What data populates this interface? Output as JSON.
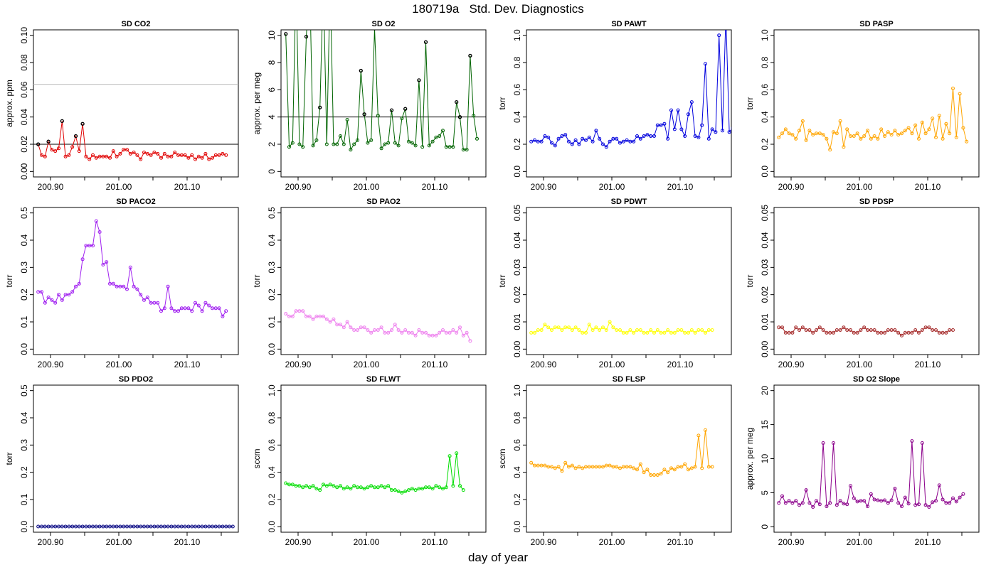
{
  "figure": {
    "title": "180719a   Std. Dev. Diagnostics",
    "xlabel": "day of year"
  },
  "chart_data": [
    {
      "type": "line",
      "title": "SD CO2",
      "ylabel": "approx. ppm",
      "color": "#e00000",
      "xlim": [
        200.875,
        201.175
      ],
      "ylim": [
        0,
        0.1
      ],
      "xticks": [
        200.9,
        201.0,
        201.1
      ],
      "xtick_labels": [
        "200.90",
        "201.00",
        "201.10"
      ],
      "yticks": [
        0,
        0.02,
        0.04,
        0.06,
        0.08,
        0.1
      ],
      "ytick_labels": [
        "0.00",
        "0.02",
        "0.04",
        "0.06",
        "0.08",
        "0.10"
      ],
      "hlines": [
        {
          "y": 0.02,
          "color": "#000000"
        },
        {
          "y": 0.064,
          "color": "#bbbbbb"
        }
      ],
      "x_start": 200.882,
      "x_step": 0.005,
      "values": [
        0.02,
        0.012,
        0.011,
        0.022,
        0.016,
        0.015,
        0.017,
        0.037,
        0.011,
        0.012,
        0.018,
        0.026,
        0.015,
        0.035,
        0.011,
        0.009,
        0.012,
        0.01,
        0.011,
        0.011,
        0.011,
        0.01,
        0.015,
        0.011,
        0.013,
        0.016,
        0.016,
        0.013,
        0.014,
        0.012,
        0.009,
        0.014,
        0.013,
        0.012,
        0.014,
        0.013,
        0.01,
        0.013,
        0.011,
        0.011,
        0.014,
        0.012,
        0.012,
        0.012,
        0.01,
        0.012,
        0.009,
        0.011,
        0.01,
        0.013,
        0.009,
        0.01,
        0.012,
        0.012,
        0.013,
        0.012
      ],
      "highlight": [
        0,
        3,
        7,
        11,
        13
      ]
    },
    {
      "type": "line",
      "title": "SD O2",
      "ylabel": "approx. per meg",
      "color": "#006400",
      "xlim": [
        200.875,
        201.175
      ],
      "ylim": [
        0,
        10
      ],
      "xticks": [
        200.9,
        201.0,
        201.1
      ],
      "xtick_labels": [
        "200.90",
        "201.00",
        "201.10"
      ],
      "yticks": [
        0,
        2,
        4,
        6,
        8,
        10
      ],
      "ytick_labels": [
        "0",
        "2",
        "4",
        "6",
        "8",
        "10"
      ],
      "hlines": [
        {
          "y": 4,
          "color": "#000000"
        }
      ],
      "x_start": 200.882,
      "x_step": 0.005,
      "values": [
        10.1,
        1.8,
        2.1,
        14,
        2.0,
        1.8,
        9.9,
        14,
        1.9,
        2.3,
        4.7,
        14,
        2.0,
        14,
        2.0,
        2.0,
        2.6,
        2.0,
        3.8,
        1.6,
        2.0,
        2.3,
        7.4,
        4.2,
        2.1,
        2.3,
        10.5,
        4.1,
        1.7,
        2.0,
        2.1,
        4.5,
        2.1,
        1.9,
        3.9,
        4.6,
        2.2,
        2.1,
        1.9,
        6.7,
        1.8,
        9.5,
        1.9,
        2.2,
        2.5,
        2.6,
        3.0,
        1.8,
        1.8,
        1.8,
        5.1,
        4.0,
        1.6,
        1.6,
        8.5,
        4.1,
        2.4
      ],
      "highlight": [
        0,
        6,
        10,
        22,
        23,
        26,
        31,
        35,
        39,
        41,
        50,
        51,
        54
      ]
    },
    {
      "type": "line",
      "title": "SD PAWT",
      "ylabel": "torr",
      "color": "#0000dd",
      "xlim": [
        200.875,
        201.175
      ],
      "ylim": [
        0,
        1.0
      ],
      "xticks": [
        200.9,
        201.0,
        201.1
      ],
      "xtick_labels": [
        "200.90",
        "201.00",
        "201.10"
      ],
      "yticks": [
        0,
        0.2,
        0.4,
        0.6,
        0.8,
        1.0
      ],
      "ytick_labels": [
        "0.0",
        "0.2",
        "0.4",
        "0.6",
        "0.8",
        "1.0"
      ],
      "hlines": [],
      "x_start": 200.882,
      "x_step": 0.005,
      "values": [
        0.22,
        0.23,
        0.22,
        0.22,
        0.26,
        0.25,
        0.21,
        0.19,
        0.24,
        0.26,
        0.27,
        0.22,
        0.2,
        0.23,
        0.2,
        0.24,
        0.23,
        0.25,
        0.22,
        0.3,
        0.24,
        0.2,
        0.18,
        0.22,
        0.24,
        0.24,
        0.21,
        0.22,
        0.23,
        0.22,
        0.22,
        0.26,
        0.24,
        0.26,
        0.27,
        0.26,
        0.26,
        0.34,
        0.34,
        0.35,
        0.24,
        0.45,
        0.31,
        0.45,
        0.31,
        0.26,
        0.42,
        0.51,
        0.26,
        0.25,
        0.34,
        0.79,
        0.24,
        0.31,
        0.29,
        1.0,
        0.3,
        1.15,
        0.29,
        0.32
      ],
      "highlight": []
    },
    {
      "type": "line",
      "title": "SD PASP",
      "ylabel": "torr",
      "color": "#ffa500",
      "xlim": [
        200.875,
        201.175
      ],
      "ylim": [
        0,
        1.0
      ],
      "xticks": [
        200.9,
        201.0,
        201.1
      ],
      "xtick_labels": [
        "200.90",
        "201.00",
        "201.10"
      ],
      "yticks": [
        0,
        0.2,
        0.4,
        0.6,
        0.8,
        1.0
      ],
      "ytick_labels": [
        "0.0",
        "0.2",
        "0.4",
        "0.6",
        "0.8",
        "1.0"
      ],
      "hlines": [],
      "x_start": 200.882,
      "x_step": 0.005,
      "values": [
        0.25,
        0.28,
        0.31,
        0.28,
        0.27,
        0.24,
        0.3,
        0.37,
        0.23,
        0.3,
        0.27,
        0.28,
        0.28,
        0.27,
        0.24,
        0.16,
        0.29,
        0.28,
        0.37,
        0.18,
        0.31,
        0.26,
        0.26,
        0.28,
        0.24,
        0.26,
        0.3,
        0.24,
        0.26,
        0.24,
        0.31,
        0.26,
        0.29,
        0.27,
        0.3,
        0.27,
        0.28,
        0.3,
        0.32,
        0.28,
        0.34,
        0.24,
        0.36,
        0.28,
        0.31,
        0.39,
        0.25,
        0.41,
        0.24,
        0.35,
        0.28,
        0.61,
        0.25,
        0.57,
        0.32,
        0.22
      ],
      "highlight": []
    },
    {
      "type": "line",
      "title": "SD PACO2",
      "ylabel": "torr",
      "color": "#a020f0",
      "xlim": [
        200.875,
        201.175
      ],
      "ylim": [
        0,
        0.5
      ],
      "xticks": [
        200.9,
        201.0,
        201.1
      ],
      "xtick_labels": [
        "200.90",
        "201.00",
        "201.10"
      ],
      "yticks": [
        0,
        0.1,
        0.2,
        0.3,
        0.4,
        0.5
      ],
      "ytick_labels": [
        "0.0",
        "0.1",
        "0.2",
        "0.3",
        "0.4",
        "0.5"
      ],
      "hlines": [],
      "x_start": 200.882,
      "x_step": 0.005,
      "values": [
        0.21,
        0.21,
        0.17,
        0.19,
        0.18,
        0.17,
        0.2,
        0.18,
        0.2,
        0.2,
        0.21,
        0.23,
        0.24,
        0.33,
        0.38,
        0.38,
        0.38,
        0.47,
        0.43,
        0.31,
        0.32,
        0.24,
        0.24,
        0.23,
        0.23,
        0.23,
        0.22,
        0.3,
        0.23,
        0.22,
        0.2,
        0.18,
        0.19,
        0.17,
        0.17,
        0.17,
        0.14,
        0.15,
        0.23,
        0.15,
        0.14,
        0.14,
        0.15,
        0.15,
        0.15,
        0.14,
        0.17,
        0.16,
        0.14,
        0.17,
        0.16,
        0.15,
        0.15,
        0.15,
        0.12,
        0.14
      ],
      "highlight": []
    },
    {
      "type": "line",
      "title": "SD PAO2",
      "ylabel": "torr",
      "color": "#ee82ee",
      "xlim": [
        200.875,
        201.175
      ],
      "ylim": [
        0,
        0.5
      ],
      "xticks": [
        200.9,
        201.0,
        201.1
      ],
      "xtick_labels": [
        "200.90",
        "201.00",
        "201.10"
      ],
      "yticks": [
        0,
        0.1,
        0.2,
        0.3,
        0.4,
        0.5
      ],
      "ytick_labels": [
        "0.0",
        "0.1",
        "0.2",
        "0.3",
        "0.4",
        "0.5"
      ],
      "hlines": [],
      "x_start": 200.882,
      "x_step": 0.005,
      "values": [
        0.13,
        0.12,
        0.12,
        0.14,
        0.14,
        0.14,
        0.12,
        0.12,
        0.11,
        0.12,
        0.12,
        0.12,
        0.11,
        0.1,
        0.11,
        0.09,
        0.09,
        0.08,
        0.1,
        0.08,
        0.07,
        0.07,
        0.08,
        0.08,
        0.07,
        0.06,
        0.07,
        0.07,
        0.08,
        0.06,
        0.06,
        0.07,
        0.09,
        0.07,
        0.06,
        0.07,
        0.06,
        0.06,
        0.05,
        0.07,
        0.06,
        0.06,
        0.05,
        0.05,
        0.05,
        0.06,
        0.07,
        0.06,
        0.06,
        0.07,
        0.06,
        0.08,
        0.05,
        0.06,
        0.03
      ],
      "highlight": []
    },
    {
      "type": "line",
      "title": "SD PDWT",
      "ylabel": "torr",
      "color": "#ffff00",
      "xlim": [
        200.875,
        201.175
      ],
      "ylim": [
        0,
        0.05
      ],
      "xticks": [
        200.9,
        201.0,
        201.1
      ],
      "xtick_labels": [
        "200.90",
        "201.00",
        "201.10"
      ],
      "yticks": [
        0,
        0.01,
        0.02,
        0.03,
        0.04,
        0.05
      ],
      "ytick_labels": [
        "0.00",
        "0.01",
        "0.02",
        "0.03",
        "0.04",
        "0.05"
      ],
      "hlines": [],
      "x_start": 200.882,
      "x_step": 0.005,
      "values": [
        0.006,
        0.006,
        0.007,
        0.007,
        0.009,
        0.008,
        0.007,
        0.008,
        0.008,
        0.007,
        0.008,
        0.008,
        0.007,
        0.008,
        0.007,
        0.006,
        0.006,
        0.009,
        0.007,
        0.008,
        0.007,
        0.008,
        0.007,
        0.01,
        0.008,
        0.007,
        0.007,
        0.006,
        0.006,
        0.007,
        0.006,
        0.007,
        0.007,
        0.006,
        0.006,
        0.007,
        0.006,
        0.007,
        0.006,
        0.006,
        0.007,
        0.006,
        0.006,
        0.007,
        0.007,
        0.006,
        0.006,
        0.007,
        0.006,
        0.007,
        0.007,
        0.006,
        0.007,
        0.007
      ],
      "highlight": []
    },
    {
      "type": "line",
      "title": "SD PDSP",
      "ylabel": "torr",
      "color": "#a52a2a",
      "xlim": [
        200.875,
        201.175
      ],
      "ylim": [
        0,
        0.05
      ],
      "xticks": [
        200.9,
        201.0,
        201.1
      ],
      "xtick_labels": [
        "200.90",
        "201.00",
        "201.10"
      ],
      "yticks": [
        0,
        0.01,
        0.02,
        0.03,
        0.04,
        0.05
      ],
      "ytick_labels": [
        "0.00",
        "0.01",
        "0.02",
        "0.03",
        "0.04",
        "0.05"
      ],
      "hlines": [],
      "x_start": 200.882,
      "x_step": 0.005,
      "values": [
        0.008,
        0.008,
        0.006,
        0.006,
        0.006,
        0.008,
        0.007,
        0.008,
        0.007,
        0.007,
        0.006,
        0.007,
        0.008,
        0.007,
        0.006,
        0.006,
        0.006,
        0.007,
        0.007,
        0.008,
        0.007,
        0.007,
        0.006,
        0.006,
        0.007,
        0.008,
        0.007,
        0.007,
        0.007,
        0.006,
        0.006,
        0.006,
        0.007,
        0.007,
        0.007,
        0.006,
        0.005,
        0.006,
        0.006,
        0.006,
        0.007,
        0.006,
        0.007,
        0.008,
        0.008,
        0.007,
        0.007,
        0.006,
        0.006,
        0.006,
        0.007,
        0.007
      ],
      "highlight": []
    },
    {
      "type": "line",
      "title": "SD PDO2",
      "ylabel": "torr",
      "color": "#000080",
      "xlim": [
        200.875,
        201.175
      ],
      "ylim": [
        0,
        0.5
      ],
      "xticks": [
        200.9,
        201.0,
        201.1
      ],
      "xtick_labels": [
        "200.90",
        "201.00",
        "201.10"
      ],
      "yticks": [
        0,
        0.1,
        0.2,
        0.3,
        0.4,
        0.5
      ],
      "ytick_labels": [
        "0.0",
        "0.1",
        "0.2",
        "0.3",
        "0.4",
        "0.5"
      ],
      "hlines": [],
      "x_start": 200.882,
      "x_step": 0.005,
      "values": [
        0.001,
        0.001,
        0.001,
        0.001,
        0.001,
        0.001,
        0.001,
        0.001,
        0.001,
        0.001,
        0.001,
        0.001,
        0.001,
        0.001,
        0.001,
        0.001,
        0.001,
        0.001,
        0.001,
        0.001,
        0.001,
        0.001,
        0.001,
        0.001,
        0.001,
        0.001,
        0.001,
        0.001,
        0.001,
        0.001,
        0.001,
        0.001,
        0.001,
        0.001,
        0.001,
        0.001,
        0.001,
        0.001,
        0.001,
        0.001,
        0.001,
        0.001,
        0.001,
        0.001,
        0.001,
        0.001,
        0.001,
        0.001,
        0.001,
        0.001,
        0.001,
        0.001,
        0.001,
        0.001,
        0.001,
        0.001,
        0.001,
        0.001
      ],
      "highlight": []
    },
    {
      "type": "line",
      "title": "SD FLWT",
      "ylabel": "sccm",
      "color": "#00dd00",
      "xlim": [
        200.875,
        201.175
      ],
      "ylim": [
        0,
        1.0
      ],
      "xticks": [
        200.9,
        201.0,
        201.1
      ],
      "xtick_labels": [
        "200.90",
        "201.00",
        "201.10"
      ],
      "yticks": [
        0,
        0.2,
        0.4,
        0.6,
        0.8,
        1.0
      ],
      "ytick_labels": [
        "0.0",
        "0.2",
        "0.4",
        "0.6",
        "0.8",
        "1.0"
      ],
      "hlines": [],
      "x_start": 200.882,
      "x_step": 0.005,
      "values": [
        0.32,
        0.31,
        0.31,
        0.3,
        0.3,
        0.29,
        0.3,
        0.29,
        0.3,
        0.28,
        0.27,
        0.31,
        0.3,
        0.31,
        0.3,
        0.29,
        0.3,
        0.28,
        0.29,
        0.28,
        0.3,
        0.29,
        0.29,
        0.28,
        0.29,
        0.3,
        0.29,
        0.29,
        0.3,
        0.29,
        0.3,
        0.27,
        0.27,
        0.26,
        0.25,
        0.26,
        0.27,
        0.28,
        0.27,
        0.28,
        0.28,
        0.29,
        0.29,
        0.28,
        0.3,
        0.29,
        0.28,
        0.29,
        0.52,
        0.3,
        0.54,
        0.3,
        0.27
      ],
      "highlight": []
    },
    {
      "type": "line",
      "title": "SD FLSP",
      "ylabel": "sccm",
      "color": "#ffa500",
      "xlim": [
        200.875,
        201.175
      ],
      "ylim": [
        0,
        1.0
      ],
      "xticks": [
        200.9,
        201.0,
        201.1
      ],
      "xtick_labels": [
        "200.90",
        "201.00",
        "201.10"
      ],
      "yticks": [
        0,
        0.2,
        0.4,
        0.6,
        0.8,
        1.0
      ],
      "ytick_labels": [
        "0.0",
        "0.2",
        "0.4",
        "0.6",
        "0.8",
        "1.0"
      ],
      "hlines": [],
      "x_start": 200.882,
      "x_step": 0.005,
      "values": [
        0.47,
        0.45,
        0.45,
        0.45,
        0.45,
        0.44,
        0.44,
        0.43,
        0.44,
        0.41,
        0.47,
        0.44,
        0.45,
        0.43,
        0.44,
        0.43,
        0.44,
        0.44,
        0.44,
        0.44,
        0.44,
        0.44,
        0.45,
        0.45,
        0.44,
        0.44,
        0.43,
        0.44,
        0.44,
        0.44,
        0.43,
        0.42,
        0.46,
        0.4,
        0.42,
        0.38,
        0.38,
        0.38,
        0.39,
        0.42,
        0.4,
        0.43,
        0.42,
        0.44,
        0.44,
        0.46,
        0.42,
        0.43,
        0.44,
        0.67,
        0.43,
        0.71,
        0.44,
        0.44
      ],
      "highlight": []
    },
    {
      "type": "line",
      "title": "SD O2 Slope",
      "ylabel": "approx. per meg",
      "color": "#8b008b",
      "xlim": [
        200.875,
        201.175
      ],
      "ylim": [
        0,
        20
      ],
      "xticks": [
        200.9,
        201.0,
        201.1
      ],
      "xtick_labels": [
        "200.90",
        "201.00",
        "201.10"
      ],
      "yticks": [
        0,
        5,
        10,
        15,
        20
      ],
      "ytick_labels": [
        "0",
        "5",
        "10",
        "15",
        "20"
      ],
      "hlines": [],
      "x_start": 200.882,
      "x_step": 0.005,
      "values": [
        3.5,
        4.5,
        3.5,
        3.8,
        3.5,
        3.8,
        3.2,
        3.5,
        5.4,
        3.5,
        2.9,
        3.8,
        3.3,
        12.3,
        3.0,
        3.5,
        12.3,
        3.2,
        3.8,
        3.4,
        3.3,
        6.0,
        4.2,
        3.7,
        3.8,
        3.8,
        3.0,
        4.8,
        4.0,
        3.9,
        3.8,
        3.9,
        3.5,
        3.9,
        5.6,
        3.5,
        3.0,
        4.3,
        3.4,
        12.6,
        3.2,
        3.3,
        12.3,
        3.2,
        2.9,
        3.6,
        3.8,
        6.1,
        4.0,
        3.5,
        3.5,
        4.2,
        3.7,
        4.3,
        4.8
      ],
      "highlight": []
    }
  ]
}
